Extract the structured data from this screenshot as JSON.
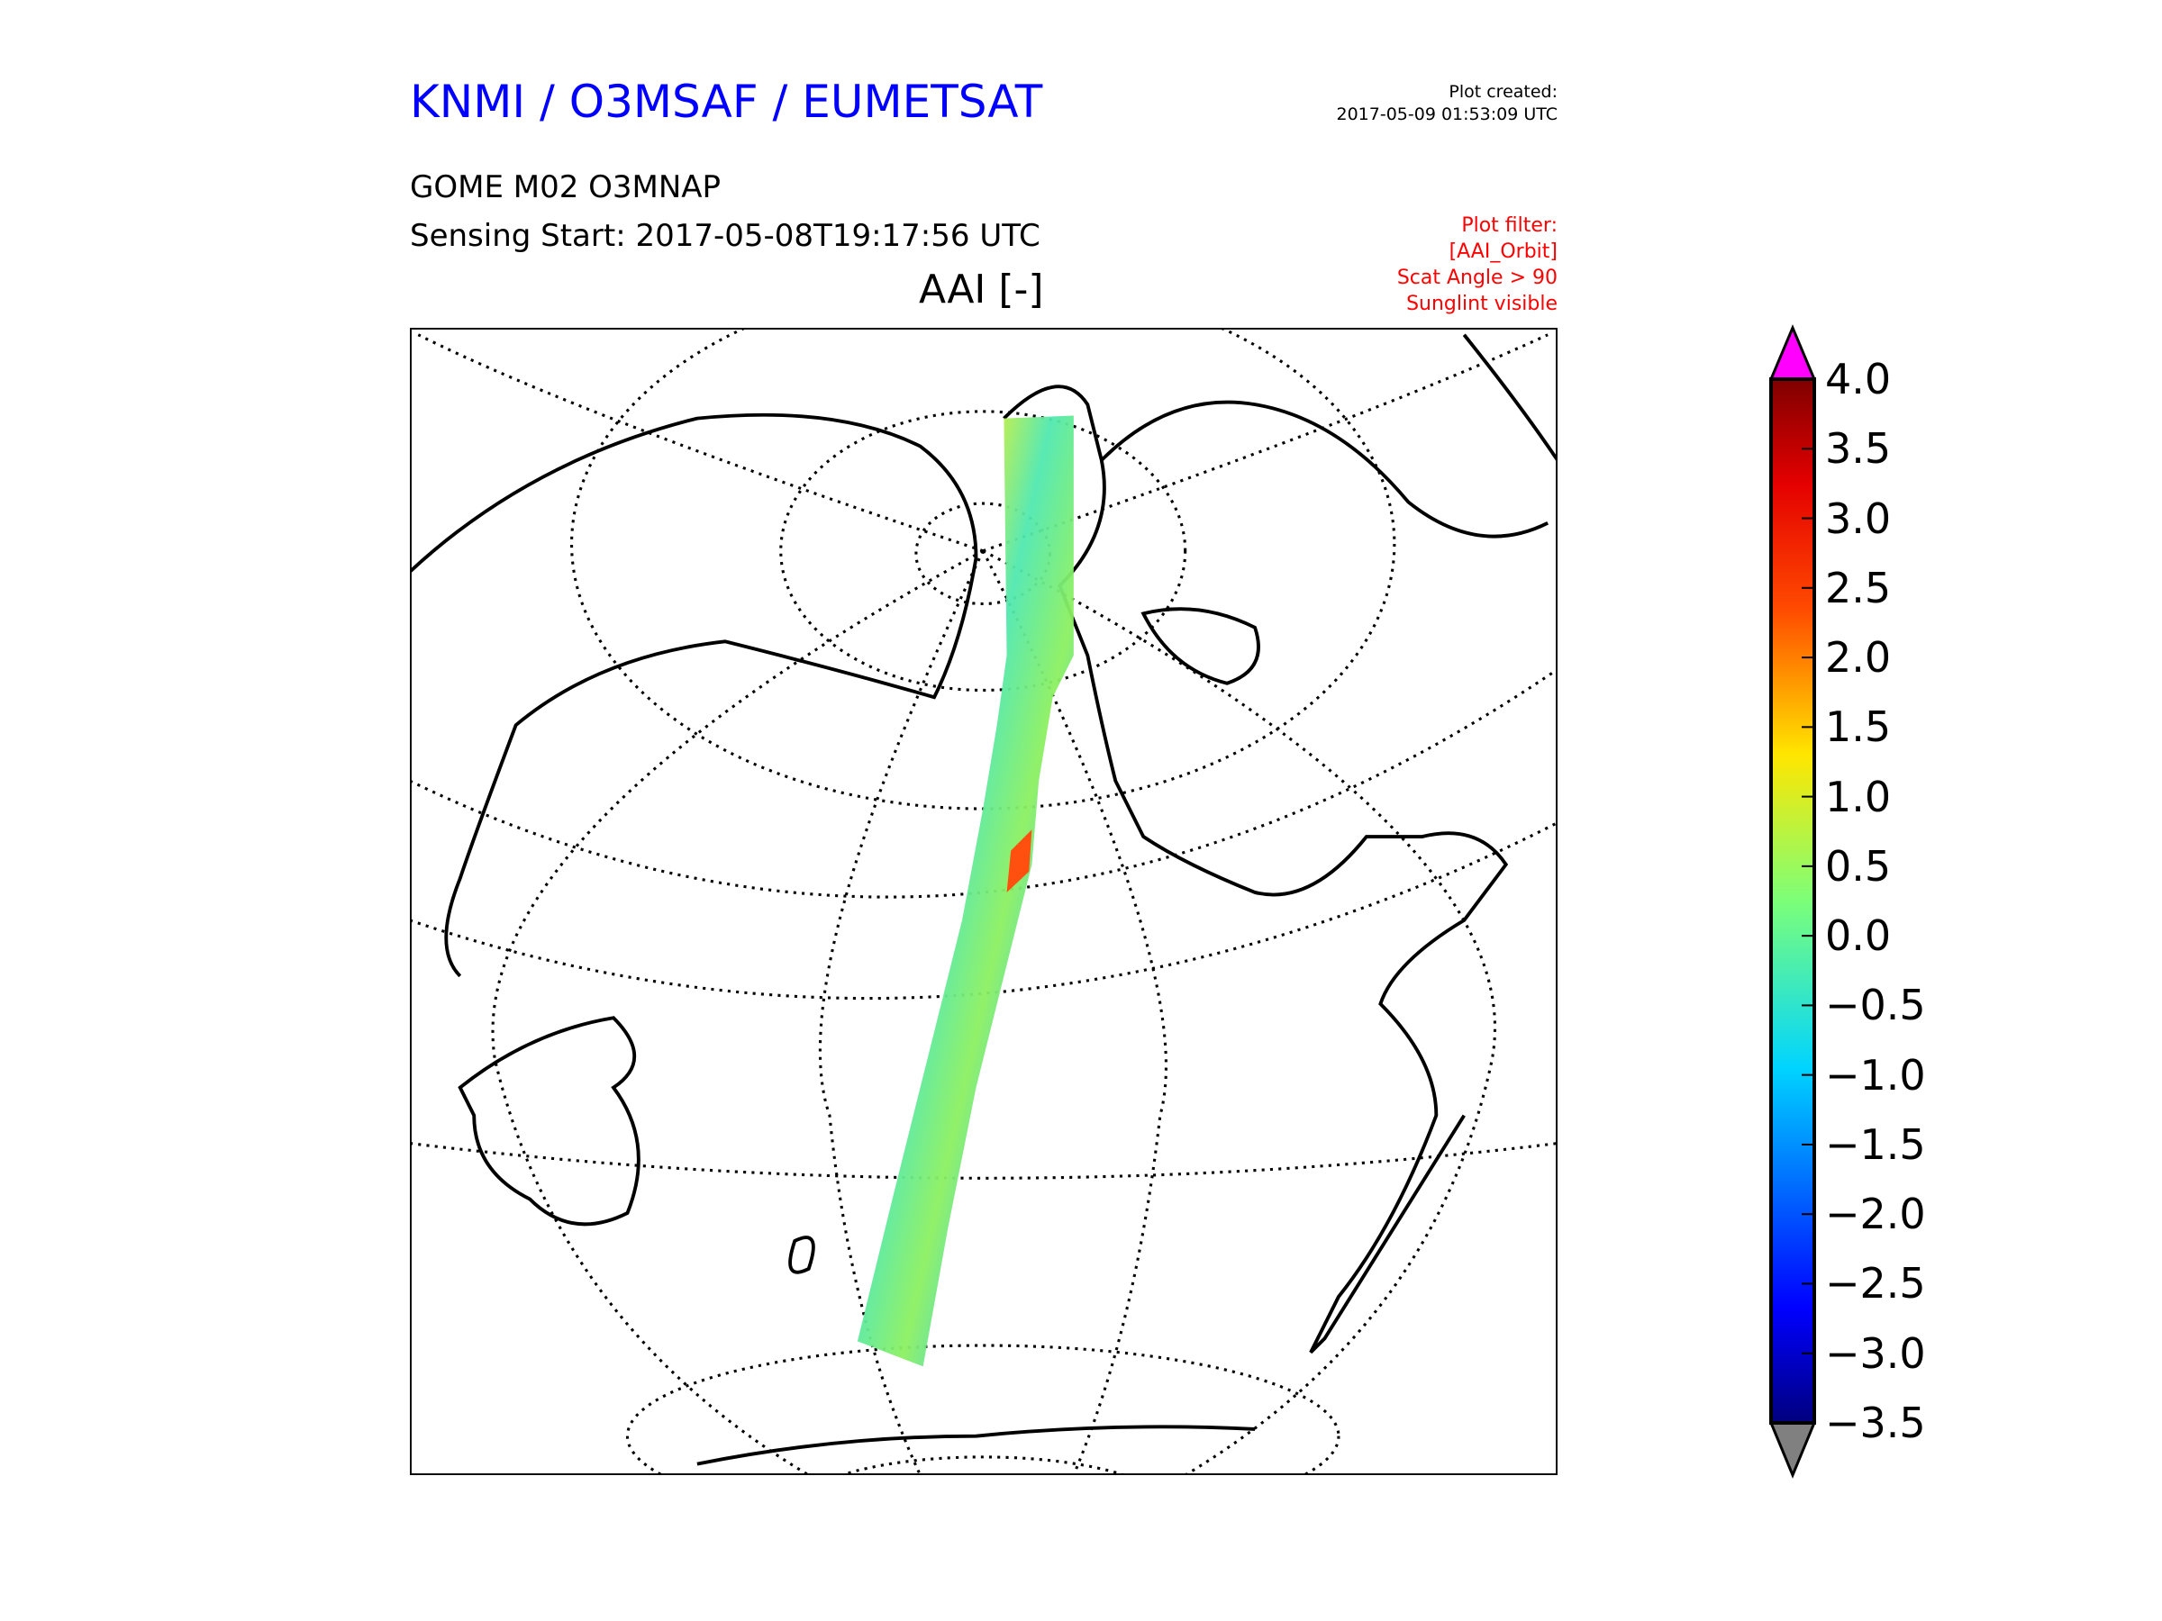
{
  "header": {
    "title": "KNMI / O3MSAF / EUMETSAT",
    "created_label": "Plot created:",
    "created_value": "2017-05-09 01:53:09 UTC",
    "product": "GOME M02 O3MNAP",
    "sensing_start": "Sensing Start: 2017-05-08T19:17:56 UTC",
    "variable": "AAI [-]",
    "filter": [
      "Plot filter:",
      "[AAI_Orbit]",
      "Scat Angle > 90",
      "Sunglint visible"
    ]
  },
  "colors": {
    "title": "#0000ff",
    "filter": "#ff0000",
    "over": "#ff00ff",
    "under": "#808080"
  },
  "chart_data": {
    "type": "heatmap",
    "title": "AAI [-]",
    "projection": "orthographic, centered on the Pacific / North Pole visible",
    "colormap": "jet",
    "vmin": -3.5,
    "vmax": 4.0,
    "extend": "both",
    "colorbar_ticks": [
      "4.0",
      "3.5",
      "3.0",
      "2.5",
      "2.0",
      "1.5",
      "1.0",
      "0.5",
      "0.0",
      "−0.5",
      "−1.0",
      "−1.5",
      "−2.0",
      "−2.5",
      "−3.0",
      "−3.5"
    ],
    "tick_values": [
      4.0,
      3.5,
      3.0,
      2.5,
      2.0,
      1.5,
      1.0,
      0.5,
      0.0,
      -0.5,
      -1.0,
      -1.5,
      -2.0,
      -2.5,
      -3.0,
      -3.5
    ],
    "swath_typical_range": [
      -1.0,
      1.5
    ]
  }
}
